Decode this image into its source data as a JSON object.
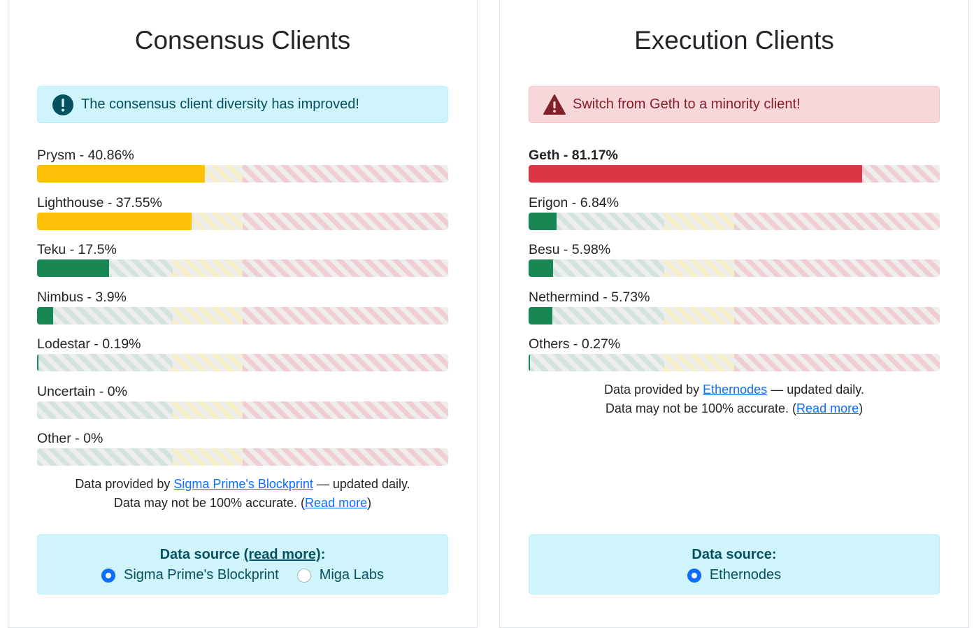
{
  "consensus": {
    "title": "Consensus Clients",
    "alert": {
      "text": "The consensus client diversity has improved!",
      "type": "info"
    },
    "clients": [
      {
        "label": "Prysm - 40.86%",
        "percent": 40.86,
        "color": "#ffc107",
        "bold": false
      },
      {
        "label": "Lighthouse - 37.55%",
        "percent": 37.55,
        "color": "#ffc107",
        "bold": false
      },
      {
        "label": "Teku - 17.5%",
        "percent": 17.5,
        "color": "#198754",
        "bold": false
      },
      {
        "label": "Nimbus - 3.9%",
        "percent": 3.9,
        "color": "#198754",
        "bold": false
      },
      {
        "label": "Lodestar - 0.19%",
        "percent": 0.19,
        "color": "#198754",
        "bold": false
      },
      {
        "label": "Uncertain - 0%",
        "percent": 0,
        "color": "#198754",
        "bold": false
      },
      {
        "label": "Other - 0%",
        "percent": 0,
        "color": "#198754",
        "bold": false
      }
    ],
    "zones": {
      "green": 33,
      "yellow": 50
    },
    "note": {
      "line1_prefix": "Data provided by ",
      "line1_link": "Sigma Prime's Blockprint",
      "line1_suffix": " — updated daily.",
      "line2_prefix": "Data may not be 100% accurate. (",
      "line2_link": "Read more",
      "line2_suffix": ")"
    },
    "source": {
      "title_prefix": "Data source ",
      "title_link": "(read more)",
      "title_suffix": ":",
      "options": [
        {
          "label": "Sigma Prime's Blockprint",
          "selected": true
        },
        {
          "label": "Miga Labs",
          "selected": false
        }
      ]
    }
  },
  "execution": {
    "title": "Execution Clients",
    "alert": {
      "text": "Switch from Geth to a minority client!",
      "type": "danger"
    },
    "clients": [
      {
        "label": "Geth - 81.17%",
        "percent": 81.17,
        "color": "#dc3545",
        "bold": true
      },
      {
        "label": "Erigon - 6.84%",
        "percent": 6.84,
        "color": "#198754",
        "bold": false
      },
      {
        "label": "Besu - 5.98%",
        "percent": 5.98,
        "color": "#198754",
        "bold": false
      },
      {
        "label": "Nethermind - 5.73%",
        "percent": 5.73,
        "color": "#198754",
        "bold": false
      },
      {
        "label": "Others - 0.27%",
        "percent": 0.27,
        "color": "#198754",
        "bold": false
      }
    ],
    "zones": {
      "green": 33,
      "yellow": 50
    },
    "note": {
      "line1_prefix": "Data provided by ",
      "line1_link": "Ethernodes",
      "line1_suffix": " — updated daily.",
      "line2_prefix": "Data may not be 100% accurate. (",
      "line2_link": "Read more",
      "line2_suffix": ")"
    },
    "source": {
      "title_prefix": "Data source:",
      "title_link": "",
      "title_suffix": "",
      "options": [
        {
          "label": "Ethernodes",
          "selected": true
        }
      ]
    }
  }
}
